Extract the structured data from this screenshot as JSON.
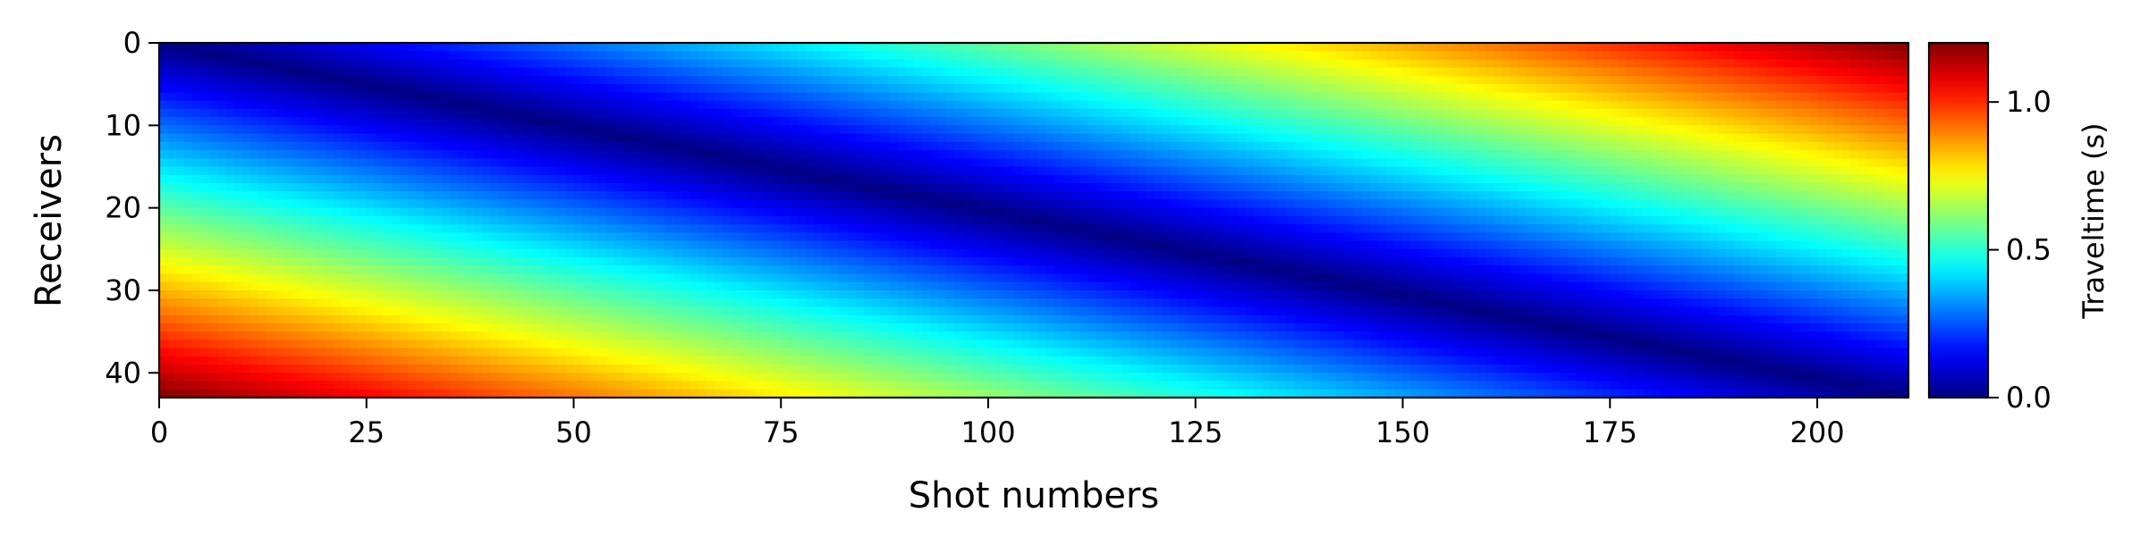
{
  "chart_data": {
    "type": "heatmap",
    "title": "",
    "xlabel": "Shot numbers",
    "ylabel": "Receivers",
    "xlim": [
      0,
      211
    ],
    "ylim": [
      43,
      0
    ],
    "x_ticks": [
      0,
      25,
      50,
      75,
      100,
      125,
      150,
      175,
      200
    ],
    "y_ticks": [
      0,
      10,
      20,
      30,
      40
    ],
    "n_shots": 211,
    "n_receivers": 43,
    "description_of_values": "Traveltime is near zero along a diagonal band from receiver 0 at shot 0 to receiver 43 at shot 211, rising to about 1.2 s at the top-right and bottom-left corners.",
    "value_range": [
      0.0,
      1.2
    ],
    "colormap": "jet",
    "colorbar": {
      "label": "Traveltime (s)",
      "min": 0.0,
      "max": 1.2,
      "ticks": [
        "0.0",
        "0.5",
        "1.0"
      ],
      "tick_values": [
        0.0,
        0.5,
        1.0
      ]
    }
  }
}
